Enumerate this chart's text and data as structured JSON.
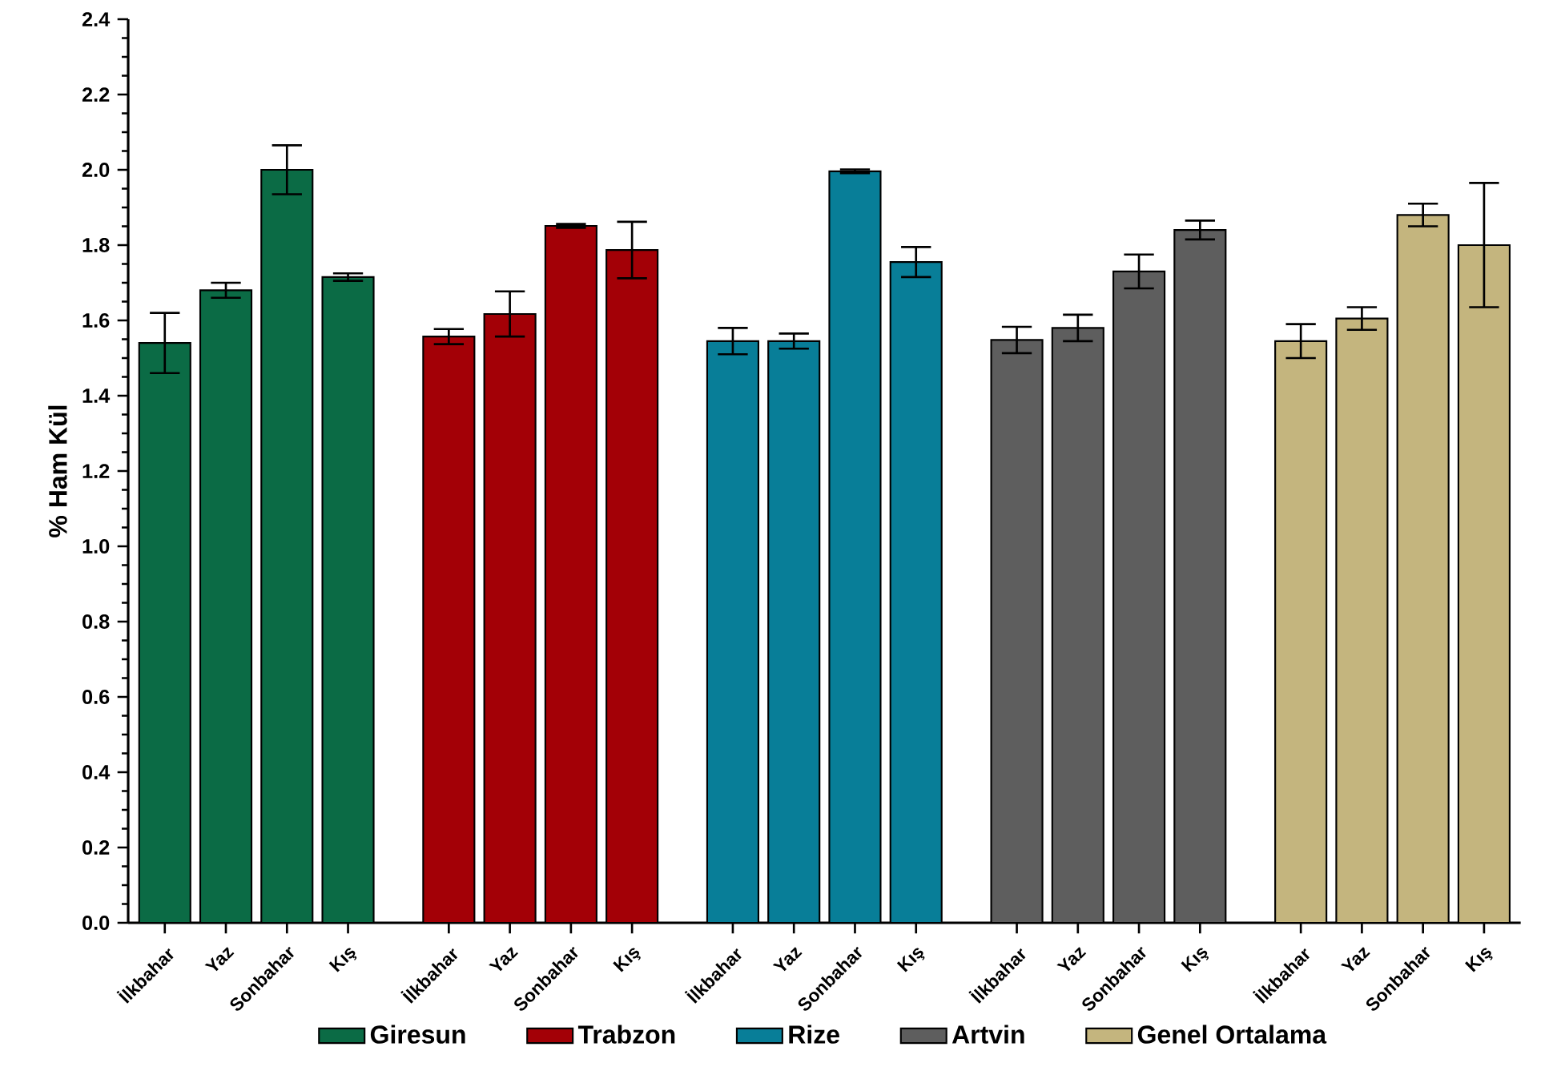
{
  "chart_data": {
    "type": "bar",
    "ylabel": "% Ham Kül",
    "categories": [
      "İlkbahar",
      "Yaz",
      "Sonbahar",
      "Kış",
      "İlkbahar",
      "Yaz",
      "Sonbahar",
      "Kış",
      "İlkbahar",
      "Yaz",
      "Sonbahar",
      "Kış",
      "İlkbahar",
      "Yaz",
      "Sonbahar",
      "Kış",
      "İlkbahar",
      "Yaz",
      "Sonbahar",
      "Kış"
    ],
    "series": [
      {
        "name": "Giresun",
        "color": "#0b6b45",
        "values": [
          1.54,
          1.68,
          2.0,
          1.715,
          null,
          null,
          null,
          null,
          null,
          null,
          null,
          null,
          null,
          null,
          null,
          null,
          null,
          null,
          null,
          null
        ],
        "errors": [
          0.08,
          0.02,
          0.065,
          0.01,
          null,
          null,
          null,
          null,
          null,
          null,
          null,
          null,
          null,
          null,
          null,
          null,
          null,
          null,
          null,
          null
        ]
      },
      {
        "name": "Trabzon",
        "color": "#a30006",
        "values": [
          null,
          null,
          null,
          null,
          1.557,
          1.617,
          1.851,
          1.787,
          null,
          null,
          null,
          null,
          null,
          null,
          null,
          null,
          null,
          null,
          null,
          null
        ],
        "errors": [
          null,
          null,
          null,
          null,
          0.02,
          0.06,
          0.005,
          0.075,
          null,
          null,
          null,
          null,
          null,
          null,
          null,
          null,
          null,
          null,
          null,
          null
        ]
      },
      {
        "name": "Rize",
        "color": "#087e98",
        "values": [
          null,
          null,
          null,
          null,
          null,
          null,
          null,
          null,
          1.545,
          1.545,
          1.996,
          1.755,
          null,
          null,
          null,
          null,
          null,
          null,
          null,
          null
        ],
        "errors": [
          null,
          null,
          null,
          null,
          null,
          null,
          null,
          null,
          0.035,
          0.02,
          0.005,
          0.04,
          null,
          null,
          null,
          null,
          null,
          null,
          null,
          null
        ]
      },
      {
        "name": "Artvin",
        "color": "#5e5e5e",
        "values": [
          null,
          null,
          null,
          null,
          null,
          null,
          null,
          null,
          null,
          null,
          null,
          null,
          1.548,
          1.58,
          1.73,
          1.84,
          null,
          null,
          null,
          null
        ],
        "errors": [
          null,
          null,
          null,
          null,
          null,
          null,
          null,
          null,
          null,
          null,
          null,
          null,
          0.035,
          0.035,
          0.045,
          0.025,
          null,
          null,
          null,
          null
        ]
      },
      {
        "name": "Genel Ortalama",
        "color": "#c4b57e",
        "values": [
          null,
          null,
          null,
          null,
          null,
          null,
          null,
          null,
          null,
          null,
          null,
          null,
          null,
          null,
          null,
          null,
          1.545,
          1.605,
          1.88,
          1.8
        ],
        "errors": [
          null,
          null,
          null,
          null,
          null,
          null,
          null,
          null,
          null,
          null,
          null,
          null,
          null,
          null,
          null,
          null,
          0.045,
          0.03,
          0.03,
          0.165
        ]
      }
    ],
    "ylim": [
      0,
      2.4
    ],
    "yticks": [
      {
        "value": 0,
        "label": "0.0"
      },
      0.2,
      0.4,
      0.6,
      0.8,
      {
        "value": 1,
        "label": "1.0"
      },
      1.2,
      1.4,
      1.6,
      1.8,
      {
        "value": 2,
        "label": "2.0"
      },
      2.2,
      2.4
    ],
    "grid": false,
    "legend": "bottom"
  }
}
